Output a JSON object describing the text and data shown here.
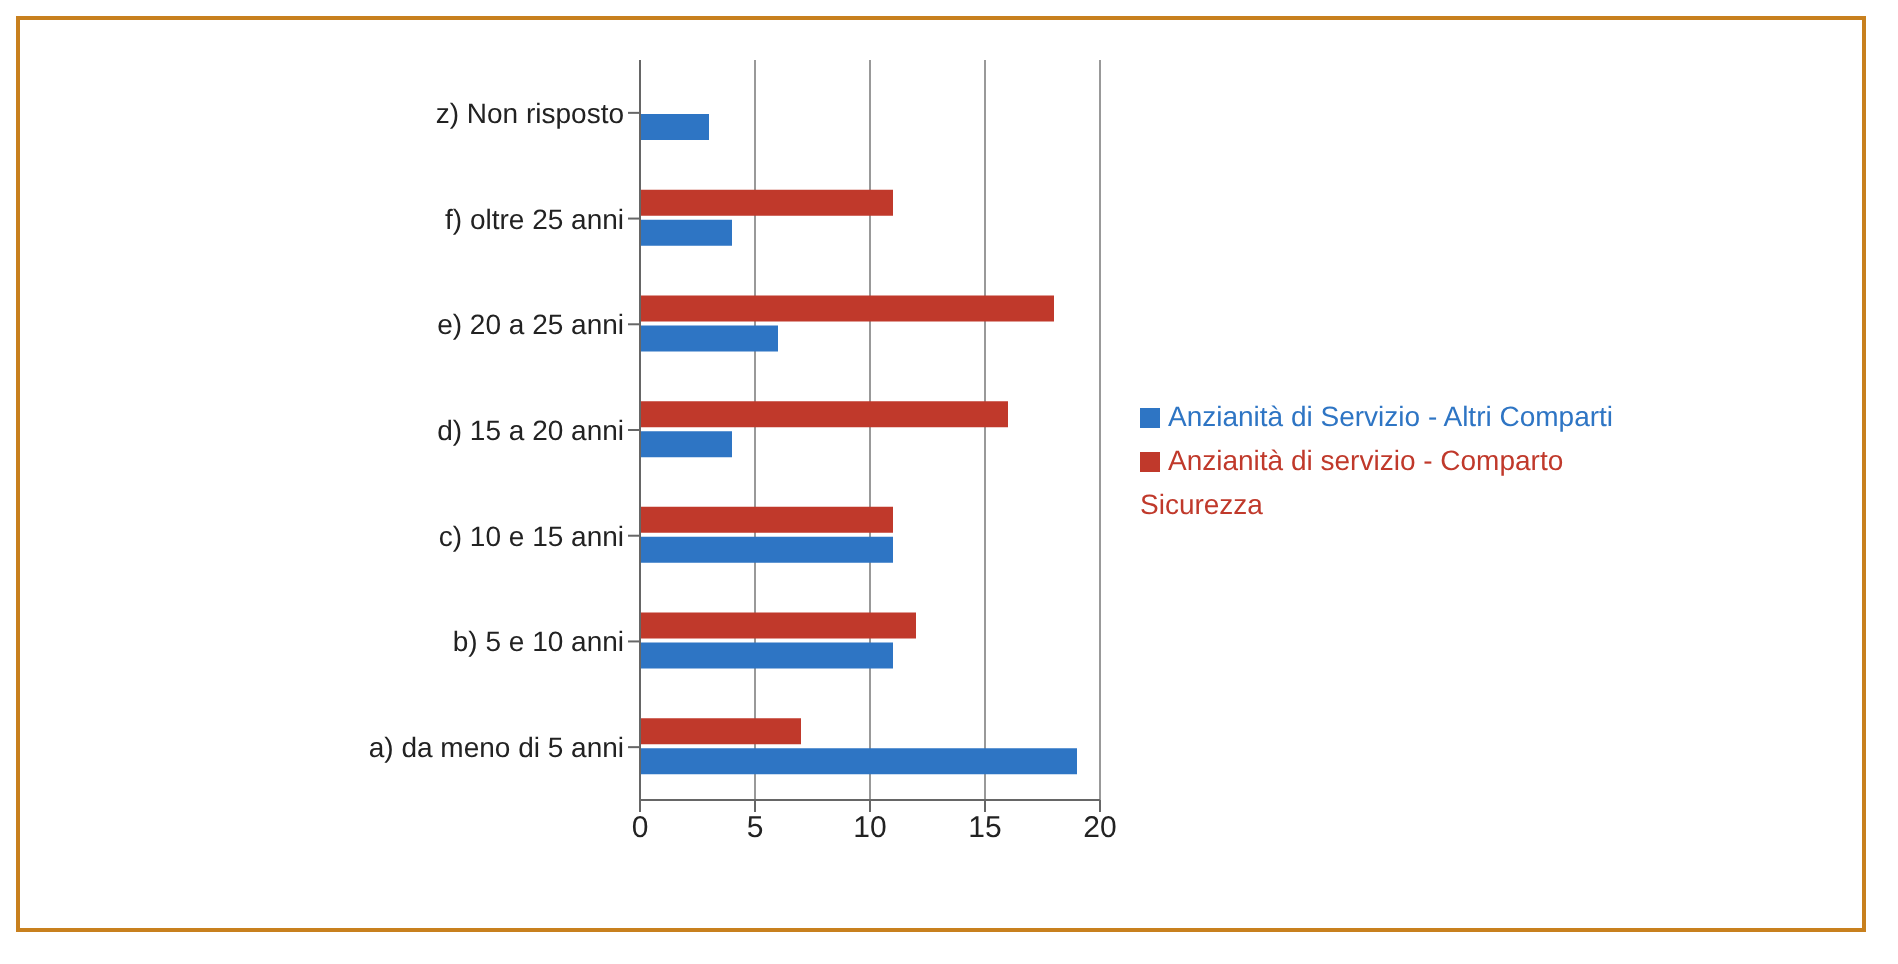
{
  "chart_data": {
    "type": "bar",
    "orientation": "horizontal",
    "categories": [
      "z) Non risposto",
      "f) oltre 25 anni",
      "e) 20 a 25 anni",
      "d) 15 a 20 anni",
      "c) 10 e 15 anni",
      "b) 5 e 10 anni",
      "a) da meno di 5 anni"
    ],
    "series": [
      {
        "name": "Anzianità di servizio - Comparto Sicurezza",
        "color": "#c0392b",
        "values": [
          0,
          11,
          18,
          16,
          11,
          12,
          7
        ]
      },
      {
        "name": "Anzianità di Servizio - Altri Comparti",
        "color": "#2e75c4",
        "values": [
          3,
          4,
          6,
          4,
          11,
          11,
          19
        ]
      }
    ],
    "xlim": [
      0,
      20
    ],
    "xticks": [
      0,
      5,
      10,
      15,
      20
    ],
    "grid": "x",
    "legend": "right"
  }
}
